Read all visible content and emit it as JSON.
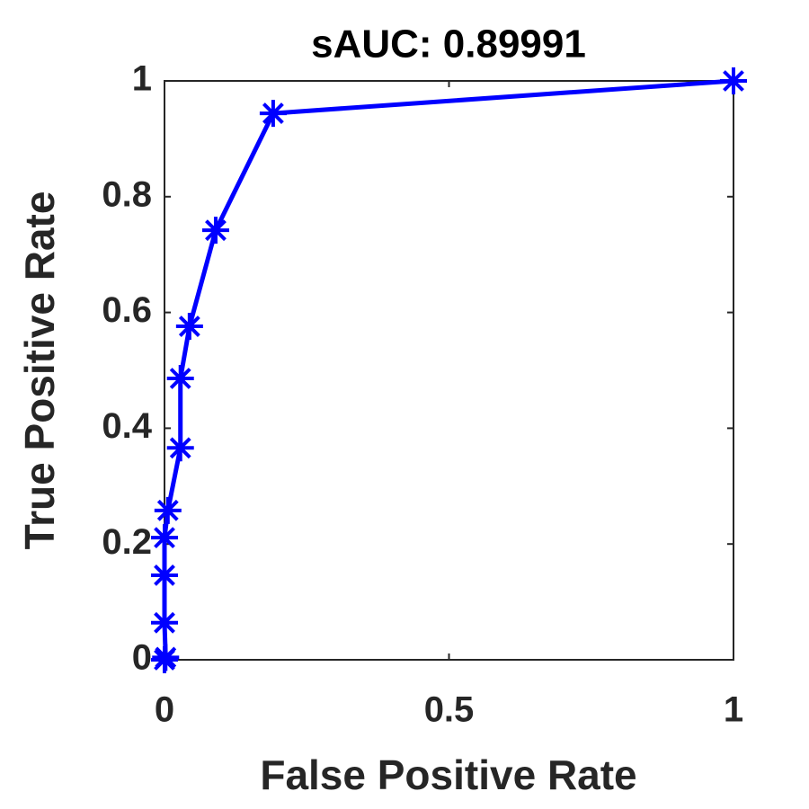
{
  "chart_data": {
    "type": "line",
    "title": "sAUC: 0.89991",
    "x_label": "False Positive Rate",
    "y_label": "True Positive Rate",
    "x": [
      0,
      0.002,
      0,
      0,
      0,
      0.006,
      0.028,
      0.028,
      0.044,
      0.09,
      0.191,
      1
    ],
    "series": [
      {
        "color": "#0000ff",
        "values": [
          0,
          0.004,
          0.064,
          0.146,
          0.211,
          0.258,
          0.366,
          0.486,
          0.576,
          0.742,
          0.944,
          1
        ]
      }
    ],
    "xlim": [
      0,
      1
    ],
    "ylim": [
      0,
      1
    ],
    "xticks": [
      0,
      0.5,
      1
    ],
    "yticks": [
      0,
      0.2,
      0.4,
      0.6,
      0.8,
      1
    ],
    "grid": false
  }
}
